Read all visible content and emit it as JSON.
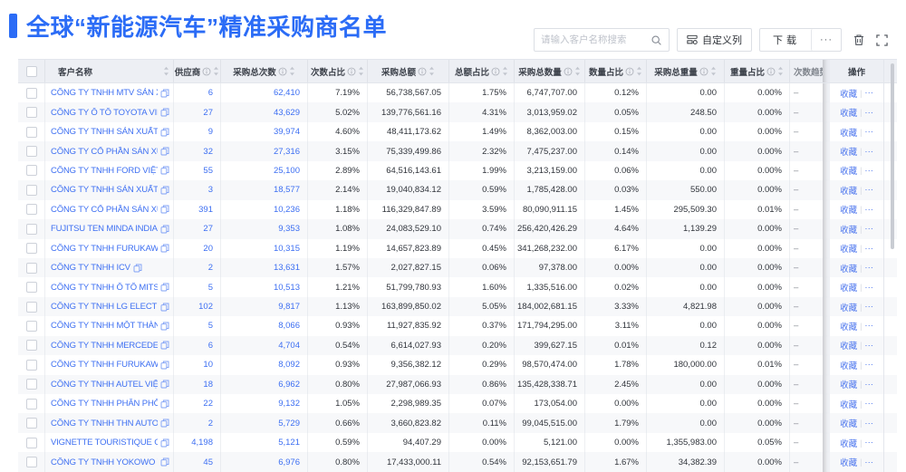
{
  "header": {
    "title": "全球“新能源汽车”精准采购商名单"
  },
  "toolbar": {
    "search_placeholder": "请输入客户名称搜索",
    "custom_columns_label": "自定义列",
    "download_label": "下载",
    "more_label": "···",
    "icons": [
      "search-icon",
      "custom-columns-icon",
      "more-icon",
      "trash-icon",
      "fullscreen-icon"
    ]
  },
  "colors": {
    "accent": "#2B6CF6",
    "link": "#3D6FF2",
    "header_bg": "#EDEFF4",
    "stripe": "#F7F8FA"
  },
  "table": {
    "columns": [
      {
        "id": "check",
        "label": "",
        "info": false,
        "sort": false
      },
      {
        "id": "name",
        "label": "客户名称",
        "info": false,
        "sort": true
      },
      {
        "id": "sup",
        "label": "供应商",
        "info": true,
        "sort": true
      },
      {
        "id": "cnt",
        "label": "采购总次数",
        "info": true,
        "sort": true
      },
      {
        "id": "cntpct",
        "label": "次数占比",
        "info": true,
        "sort": true
      },
      {
        "id": "amt",
        "label": "采购总额",
        "info": true,
        "sort": true
      },
      {
        "id": "amtpct",
        "label": "总额占比",
        "info": true,
        "sort": true
      },
      {
        "id": "qty",
        "label": "采购总数量",
        "info": true,
        "sort": true
      },
      {
        "id": "qtypct",
        "label": "数量占比",
        "info": true,
        "sort": true
      },
      {
        "id": "wgt",
        "label": "采购总重量",
        "info": true,
        "sort": true
      },
      {
        "id": "wgtpct",
        "label": "重量占比",
        "info": true,
        "sort": true
      },
      {
        "id": "trend",
        "label": "次数趋势",
        "info": false,
        "sort": false
      },
      {
        "id": "action",
        "label": "操作",
        "info": false,
        "sort": false
      }
    ],
    "action_labels": {
      "favorite": "收藏",
      "more": "···"
    },
    "rows": [
      {
        "name": "CÔNG TY TNHH MTV SẢN XUẤ...",
        "sup": "6",
        "cnt": "62,410",
        "cntpct": "7.19%",
        "amt": "56,738,567.05",
        "amtpct": "1.75%",
        "qty": "6,747,707.00",
        "qtypct": "0.12%",
        "wgt": "0.00",
        "wgtpct": "0.00%",
        "trend": "–"
      },
      {
        "name": "CÔNG TY Ô TÔ TOYOTA VIỆT ...",
        "sup": "27",
        "cnt": "43,629",
        "cntpct": "5.02%",
        "amt": "139,776,561.16",
        "amtpct": "4.31%",
        "qty": "3,013,959.02",
        "qtypct": "0.05%",
        "wgt": "248.50",
        "wgtpct": "0.00%",
        "trend": "–"
      },
      {
        "name": "CÔNG TY TNHH SẢN XUẤT VÀ ...",
        "sup": "9",
        "cnt": "39,974",
        "cntpct": "4.60%",
        "amt": "48,411,173.62",
        "amtpct": "1.49%",
        "qty": "8,362,003.00",
        "qtypct": "0.15%",
        "wgt": "0.00",
        "wgtpct": "0.00%",
        "trend": "–"
      },
      {
        "name": "CÔNG TY CỔ PHẦN SẢN XUẤT...",
        "sup": "32",
        "cnt": "27,316",
        "cntpct": "3.15%",
        "amt": "75,339,499.86",
        "amtpct": "2.32%",
        "qty": "7,475,237.00",
        "qtypct": "0.14%",
        "wgt": "0.00",
        "wgtpct": "0.00%",
        "trend": "–"
      },
      {
        "name": "CÔNG TY TNHH FORD VIỆT NAM",
        "sup": "55",
        "cnt": "25,100",
        "cntpct": "2.89%",
        "amt": "64,516,143.61",
        "amtpct": "1.99%",
        "qty": "3,213,159.00",
        "qtypct": "0.06%",
        "wgt": "0.00",
        "wgtpct": "0.00%",
        "trend": "–"
      },
      {
        "name": "CÔNG TY TNHH SẢN XUẤT VÀ ...",
        "sup": "3",
        "cnt": "18,577",
        "cntpct": "2.14%",
        "amt": "19,040,834.12",
        "amtpct": "0.59%",
        "qty": "1,785,428.00",
        "qtypct": "0.03%",
        "wgt": "550.00",
        "wgtpct": "0.00%",
        "trend": "–"
      },
      {
        "name": "CÔNG TY CỔ PHẦN SẢN XUẤT...",
        "sup": "391",
        "cnt": "10,236",
        "cntpct": "1.18%",
        "amt": "116,329,847.89",
        "amtpct": "3.59%",
        "qty": "80,090,911.15",
        "qtypct": "1.45%",
        "wgt": "295,509.30",
        "wgtpct": "0.01%",
        "trend": "–"
      },
      {
        "name": "FUJITSU TEN MINDA INDIA PVT...",
        "sup": "27",
        "cnt": "9,353",
        "cntpct": "1.08%",
        "amt": "24,083,529.10",
        "amtpct": "0.74%",
        "qty": "256,420,426.29",
        "qtypct": "4.64%",
        "wgt": "1,139.29",
        "wgtpct": "0.00%",
        "trend": "–"
      },
      {
        "name": "CÔNG TY TNHH FURUKAWA A...",
        "sup": "20",
        "cnt": "10,315",
        "cntpct": "1.19%",
        "amt": "14,657,823.89",
        "amtpct": "0.45%",
        "qty": "341,268,232.00",
        "qtypct": "6.17%",
        "wgt": "0.00",
        "wgtpct": "0.00%",
        "trend": "–"
      },
      {
        "name": "CÔNG TY TNHH ICV",
        "sup": "2",
        "cnt": "13,631",
        "cntpct": "1.57%",
        "amt": "2,027,827.15",
        "amtpct": "0.06%",
        "qty": "97,378.00",
        "qtypct": "0.00%",
        "wgt": "0.00",
        "wgtpct": "0.00%",
        "trend": "–"
      },
      {
        "name": "CÔNG TY TNHH Ô TÔ MITSUBI...",
        "sup": "5",
        "cnt": "10,513",
        "cntpct": "1.21%",
        "amt": "51,799,780.93",
        "amtpct": "1.60%",
        "qty": "1,335,516.00",
        "qtypct": "0.02%",
        "wgt": "0.00",
        "wgtpct": "0.00%",
        "trend": "–"
      },
      {
        "name": "CÔNG TY TNHH LG ELECTRON...",
        "sup": "102",
        "cnt": "9,817",
        "cntpct": "1.13%",
        "amt": "163,899,850.02",
        "amtpct": "5.05%",
        "qty": "184,002,681.15",
        "qtypct": "3.33%",
        "wgt": "4,821.98",
        "wgtpct": "0.00%",
        "trend": "–"
      },
      {
        "name": "CÔNG TY TNHH MỘT THÀNH V...",
        "sup": "5",
        "cnt": "8,066",
        "cntpct": "0.93%",
        "amt": "11,927,835.92",
        "amtpct": "0.37%",
        "qty": "171,794,295.00",
        "qtypct": "3.11%",
        "wgt": "0.00",
        "wgtpct": "0.00%",
        "trend": "–"
      },
      {
        "name": "CÔNG TY TNHH MERCEDES–B...",
        "sup": "6",
        "cnt": "4,704",
        "cntpct": "0.54%",
        "amt": "6,614,027.93",
        "amtpct": "0.20%",
        "qty": "399,627.15",
        "qtypct": "0.01%",
        "wgt": "0.12",
        "wgtpct": "0.00%",
        "trend": "–"
      },
      {
        "name": "CÔNG TY TNHH FURUKAWA A...",
        "sup": "10",
        "cnt": "8,092",
        "cntpct": "0.93%",
        "amt": "9,356,382.12",
        "amtpct": "0.29%",
        "qty": "98,570,474.00",
        "qtypct": "1.78%",
        "wgt": "180,000.00",
        "wgtpct": "0.01%",
        "trend": "–"
      },
      {
        "name": "CÔNG TY TNHH AUTEL VIỆT N...",
        "sup": "18",
        "cnt": "6,962",
        "cntpct": "0.80%",
        "amt": "27,987,066.93",
        "amtpct": "0.86%",
        "qty": "135,428,338.71",
        "qtypct": "2.45%",
        "wgt": "0.00",
        "wgtpct": "0.00%",
        "trend": "–"
      },
      {
        "name": "CÔNG TY TNHH PHÂN PHỐI T...",
        "sup": "22",
        "cnt": "9,132",
        "cntpct": "1.05%",
        "amt": "2,298,989.35",
        "amtpct": "0.07%",
        "qty": "173,054.00",
        "qtypct": "0.00%",
        "wgt": "0.00",
        "wgtpct": "0.00%",
        "trend": "–"
      },
      {
        "name": "CÔNG TY TNHH THN AUTOPAR...",
        "sup": "2",
        "cnt": "5,729",
        "cntpct": "0.66%",
        "amt": "3,660,823.82",
        "amtpct": "0.11%",
        "qty": "99,045,515.00",
        "qtypct": "1.79%",
        "wgt": "0.00",
        "wgtpct": "0.00%",
        "trend": "–"
      },
      {
        "name": "VIGNETTE TOURISTIQUE G UNI...",
        "sup": "4,198",
        "cnt": "5,121",
        "cntpct": "0.59%",
        "amt": "94,407.29",
        "amtpct": "0.00%",
        "qty": "5,121.00",
        "qtypct": "0.00%",
        "wgt": "1,355,983.00",
        "wgtpct": "0.05%",
        "trend": "–"
      },
      {
        "name": "CÔNG TY TNHH YOKOWO VIỆT...",
        "sup": "45",
        "cnt": "6,976",
        "cntpct": "0.80%",
        "amt": "17,433,000.11",
        "amtpct": "0.54%",
        "qty": "92,153,651.79",
        "qtypct": "1.67%",
        "wgt": "34,382.39",
        "wgtpct": "0.00%",
        "trend": "–"
      }
    ]
  }
}
